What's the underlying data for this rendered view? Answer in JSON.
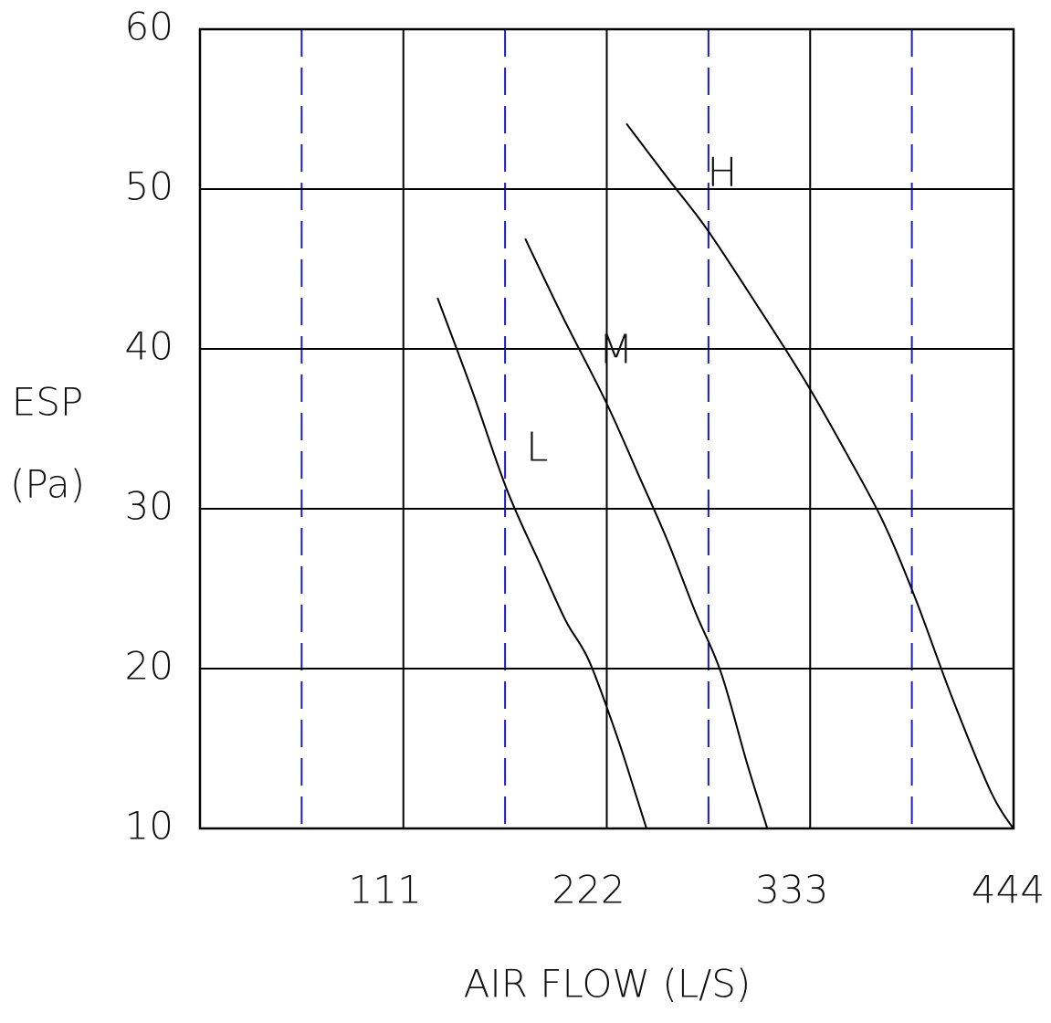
{
  "chart_data": {
    "type": "line",
    "title": "",
    "xlabel": "AIR FLOW (L/S)",
    "ylabel_lines": [
      "ESP",
      "(Pa)"
    ],
    "xlim": [
      0,
      444
    ],
    "ylim": [
      10,
      60
    ],
    "x_ticks": [
      111,
      222,
      333,
      444
    ],
    "x_tick_labels": [
      "111",
      "222",
      "333",
      "444"
    ],
    "x_minor_gridlines": [
      55.5,
      166.5,
      277.5,
      388.5
    ],
    "y_ticks": [
      10,
      20,
      30,
      40,
      50,
      60
    ],
    "y_tick_labels": [
      "10",
      "20",
      "30",
      "40",
      "50",
      "60"
    ],
    "grid": true,
    "colors": {
      "major_grid": "#000000",
      "minor_grid": "#1a1acc",
      "curve": "#000000"
    },
    "series": [
      {
        "name": "L",
        "points": [
          [
            129.6,
            43.2
          ],
          [
            148.5,
            37.4
          ],
          [
            167.5,
            31.2
          ],
          [
            185.3,
            26.6
          ],
          [
            199.6,
            23.0
          ],
          [
            212.3,
            20.5
          ],
          [
            227.2,
            15.9
          ],
          [
            236.5,
            12.6
          ],
          [
            243.7,
            10.0
          ]
        ]
      },
      {
        "name": "M",
        "points": [
          [
            177.5,
            46.9
          ],
          [
            197.6,
            42.1
          ],
          [
            221.9,
            36.6
          ],
          [
            240.2,
            31.9
          ],
          [
            254.8,
            28.1
          ],
          [
            270.5,
            23.5
          ],
          [
            284.5,
            19.7
          ],
          [
            298.5,
            14.1
          ],
          [
            309.6,
            10.0
          ]
        ]
      },
      {
        "name": "H",
        "points": [
          [
            232.7,
            54.1
          ],
          [
            254.5,
            50.8
          ],
          [
            276.6,
            47.5
          ],
          [
            304.2,
            42.7
          ],
          [
            330.8,
            37.9
          ],
          [
            354.6,
            33.1
          ],
          [
            373.2,
            29.1
          ],
          [
            390.4,
            24.4
          ],
          [
            410.4,
            18.2
          ],
          [
            431.6,
            12.3
          ],
          [
            443.8,
            10.0
          ]
        ]
      }
    ],
    "curve_labels": [
      {
        "text": "L",
        "x": 184,
        "y": 33.7
      },
      {
        "text": "M",
        "x": 227,
        "y": 39.8
      },
      {
        "text": "H",
        "x": 285,
        "y": 50.9
      }
    ]
  }
}
